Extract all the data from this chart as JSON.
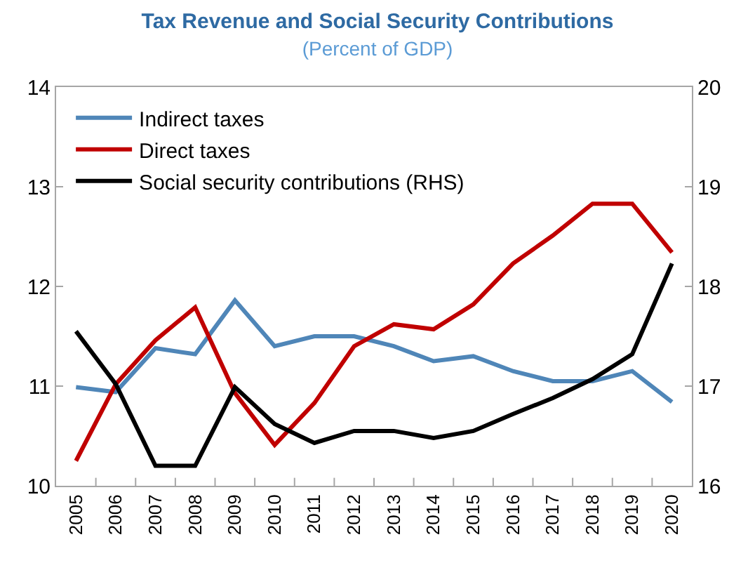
{
  "chart_data": {
    "type": "line",
    "title": "Tax Revenue and Social Security Contributions",
    "subtitle": "(Percent of GDP)",
    "categories": [
      "2005",
      "2006",
      "2007",
      "2008",
      "2009",
      "2010",
      "2011",
      "2012",
      "2013",
      "2014",
      "2015",
      "2016",
      "2017",
      "2018",
      "2019",
      "2020"
    ],
    "series": [
      {
        "name": "Indirect taxes",
        "color": "#4f86b8",
        "values": [
          10.99,
          10.94,
          11.38,
          11.32,
          11.86,
          11.4,
          11.5,
          11.5,
          11.4,
          11.25,
          11.3,
          11.15,
          11.05,
          11.05,
          11.15,
          10.84
        ]
      },
      {
        "name": "Direct taxes",
        "color": "#c00000",
        "values": [
          10.25,
          11.02,
          11.46,
          11.79,
          10.93,
          10.41,
          10.83,
          11.4,
          11.62,
          11.57,
          11.82,
          12.23,
          12.51,
          12.83,
          12.83,
          12.34
        ]
      },
      {
        "name": "Social security contributions (RHS)",
        "color": "#000000",
        "axis": "y2",
        "values": [
          17.55,
          17.02,
          16.2,
          16.2,
          16.99,
          16.62,
          16.43,
          16.55,
          16.55,
          16.48,
          16.55,
          16.72,
          16.88,
          17.07,
          17.32,
          18.23
        ]
      }
    ],
    "ylim": [
      10,
      14
    ],
    "yticks": [
      10,
      11,
      12,
      13,
      14
    ],
    "y2lim": [
      16,
      20
    ],
    "y2ticks": [
      16,
      17,
      18,
      19,
      20
    ],
    "legend": "top left",
    "marker": "none",
    "line_style": "solid"
  }
}
